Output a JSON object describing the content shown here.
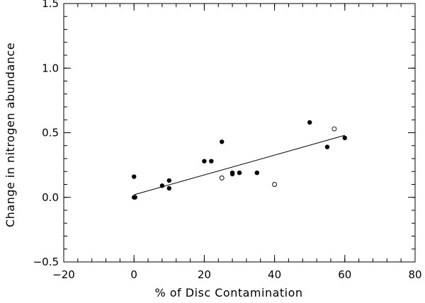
{
  "chart_data": {
    "type": "scatter",
    "title": "",
    "xlabel": "% of Disc Contamination",
    "ylabel": "Change in nitrogen abundance",
    "xlim": [
      -20,
      80
    ],
    "ylim": [
      -0.5,
      1.5
    ],
    "x_major_ticks": [
      -20,
      0,
      20,
      40,
      60,
      80
    ],
    "y_major_ticks": [
      -0.5,
      0.0,
      0.5,
      1.0,
      1.5
    ],
    "x_tick_labels": [
      "−20",
      "0",
      "20",
      "40",
      "60",
      "80"
    ],
    "y_tick_labels": [
      "−0.5",
      "0.0",
      "0.5",
      "1.0",
      "1.5"
    ],
    "x_minor_step": 4,
    "y_minor_step": 0.1,
    "grid": false,
    "series": [
      {
        "marker": "filled-circle",
        "points": [
          [
            0,
            0.16
          ],
          [
            0,
            0.0
          ],
          [
            0.3,
            0.0
          ],
          [
            8,
            0.09
          ],
          [
            10,
            0.13
          ],
          [
            10,
            0.07
          ],
          [
            20,
            0.28
          ],
          [
            22,
            0.28
          ],
          [
            25,
            0.43
          ],
          [
            28,
            0.18
          ],
          [
            28,
            0.19
          ],
          [
            30,
            0.19
          ],
          [
            35,
            0.19
          ],
          [
            50,
            0.58
          ],
          [
            55,
            0.39
          ],
          [
            60,
            0.46
          ]
        ]
      },
      {
        "marker": "open-circle",
        "points": [
          [
            25,
            0.15
          ],
          [
            40,
            0.1
          ],
          [
            57,
            0.53
          ]
        ]
      }
    ],
    "fit_line": {
      "x": [
        0,
        60
      ],
      "y": [
        0.02,
        0.48
      ]
    }
  }
}
